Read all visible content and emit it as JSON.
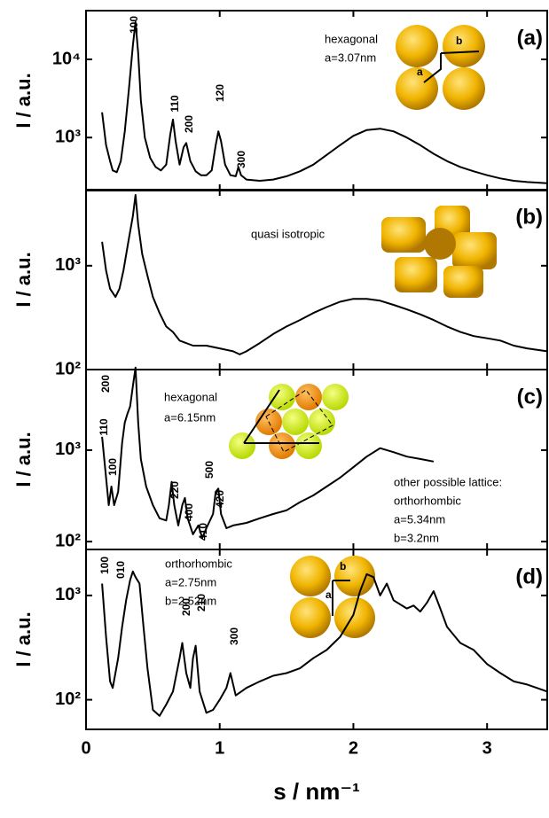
{
  "chart_data": [
    {
      "type": "line",
      "panel_label": "(a)",
      "ylabel": "I / a.u.",
      "log_y": true,
      "color": "#000000",
      "xlim": [
        0,
        3.45
      ],
      "ylim": [
        210,
        42000
      ],
      "yticks": [
        {
          "value": 1000,
          "label": "10³"
        },
        {
          "value": 10000,
          "label": "10⁴"
        }
      ],
      "annotations": [
        "100",
        "110",
        "200",
        "120",
        "300",
        "hexagonal",
        "a=3.07nm",
        "a",
        "b"
      ],
      "x": [
        0.12,
        0.15,
        0.18,
        0.2,
        0.23,
        0.26,
        0.29,
        0.32,
        0.35,
        0.37,
        0.39,
        0.41,
        0.44,
        0.48,
        0.52,
        0.56,
        0.6,
        0.63,
        0.65,
        0.67,
        0.7,
        0.73,
        0.75,
        0.78,
        0.82,
        0.86,
        0.9,
        0.94,
        0.97,
        0.99,
        1.01,
        1.04,
        1.08,
        1.12,
        1.14,
        1.16,
        1.2,
        1.3,
        1.4,
        1.5,
        1.6,
        1.7,
        1.8,
        1.9,
        2.0,
        2.1,
        2.2,
        2.3,
        2.4,
        2.5,
        2.6,
        2.7,
        2.8,
        2.9,
        3.0,
        3.1,
        3.2,
        3.3,
        3.45
      ],
      "values": [
        2100,
        800,
        500,
        380,
        360,
        500,
        1200,
        4000,
        15000,
        30000,
        12000,
        3000,
        1000,
        550,
        420,
        380,
        450,
        1100,
        1700,
        900,
        450,
        750,
        850,
        500,
        370,
        330,
        330,
        380,
        800,
        1200,
        900,
        450,
        330,
        320,
        420,
        330,
        290,
        280,
        290,
        320,
        370,
        450,
        600,
        800,
        1050,
        1250,
        1300,
        1200,
        1000,
        800,
        620,
        500,
        420,
        370,
        330,
        300,
        280,
        270,
        260
      ]
    },
    {
      "type": "line",
      "panel_label": "(b)",
      "ylabel": "I / a.u.",
      "log_y": true,
      "color": "#000000",
      "xlim": [
        0,
        3.45
      ],
      "ylim": [
        100,
        5400
      ],
      "yticks": [
        {
          "value": 100,
          "label": "10²"
        },
        {
          "value": 1000,
          "label": "10³"
        }
      ],
      "annotations": [
        "quasi isotropic"
      ],
      "x": [
        0.12,
        0.15,
        0.18,
        0.22,
        0.25,
        0.28,
        0.32,
        0.35,
        0.37,
        0.39,
        0.42,
        0.46,
        0.5,
        0.55,
        0.6,
        0.65,
        0.7,
        0.8,
        0.9,
        1.0,
        1.1,
        1.15,
        1.2,
        1.3,
        1.4,
        1.5,
        1.6,
        1.7,
        1.8,
        1.9,
        2.0,
        2.1,
        2.2,
        2.3,
        2.4,
        2.5,
        2.6,
        2.7,
        2.8,
        2.9,
        3.0,
        3.1,
        3.2,
        3.3,
        3.45
      ],
      "values": [
        1700,
        900,
        600,
        500,
        600,
        900,
        1800,
        3000,
        4800,
        2500,
        1300,
        800,
        500,
        350,
        260,
        230,
        190,
        170,
        170,
        160,
        150,
        140,
        150,
        180,
        220,
        260,
        300,
        350,
        400,
        450,
        480,
        480,
        460,
        420,
        380,
        340,
        300,
        260,
        230,
        210,
        200,
        190,
        170,
        160,
        150
      ]
    },
    {
      "type": "line",
      "panel_label": "(c)",
      "ylabel": "I / a.u.",
      "log_y": true,
      "color": "#000000",
      "xlim": [
        0,
        3.45
      ],
      "ylim": [
        82,
        7600
      ],
      "yticks": [
        {
          "value": 100,
          "label": "10²"
        },
        {
          "value": 1000,
          "label": "10³"
        }
      ],
      "annotations": [
        "200",
        "110",
        "100",
        "220",
        "400",
        "410",
        "500",
        "420",
        "hexagonal",
        "a=6.15nm",
        "other possible lattice:",
        "orthorhombic",
        "a=5.34nm",
        "b=3.2nm"
      ],
      "x": [
        0.12,
        0.15,
        0.17,
        0.19,
        0.21,
        0.24,
        0.27,
        0.29,
        0.31,
        0.33,
        0.35,
        0.37,
        0.39,
        0.41,
        0.45,
        0.5,
        0.55,
        0.6,
        0.62,
        0.64,
        0.66,
        0.69,
        0.72,
        0.74,
        0.76,
        0.8,
        0.84,
        0.87,
        0.9,
        0.95,
        0.97,
        0.99,
        1.01,
        1.05,
        1.1,
        1.2,
        1.3,
        1.4,
        1.5,
        1.6,
        1.7,
        1.8,
        1.9,
        2.0,
        2.1,
        2.2,
        2.3,
        2.4,
        2.5,
        2.6
      ],
      "values": [
        1400,
        500,
        250,
        400,
        250,
        350,
        1200,
        2000,
        2500,
        3000,
        5000,
        8000,
        2000,
        800,
        400,
        250,
        180,
        170,
        250,
        450,
        250,
        150,
        250,
        300,
        180,
        120,
        150,
        110,
        140,
        200,
        350,
        380,
        200,
        140,
        150,
        160,
        180,
        200,
        220,
        270,
        320,
        400,
        500,
        650,
        850,
        1050,
        950,
        850,
        800,
        750
      ]
    },
    {
      "type": "line",
      "panel_label": "(d)",
      "ylabel": "I / a.u.",
      "xlabel": "s / nm⁻¹",
      "log_y": true,
      "color": "#000000",
      "xlim": [
        0,
        3.45
      ],
      "ylim": [
        52,
        2760
      ],
      "xticks": [
        0,
        1,
        2,
        3
      ],
      "yticks": [
        {
          "value": 100,
          "label": "10²"
        },
        {
          "value": 1000,
          "label": "10³"
        }
      ],
      "annotations": [
        "100",
        "010",
        "200",
        "210",
        "300",
        "orthorhombic",
        "a=2.75nm",
        "b=2.52nm",
        "a",
        "b"
      ],
      "x": [
        0.12,
        0.15,
        0.18,
        0.2,
        0.24,
        0.27,
        0.3,
        0.33,
        0.35,
        0.37,
        0.4,
        0.43,
        0.46,
        0.5,
        0.55,
        0.6,
        0.65,
        0.7,
        0.72,
        0.75,
        0.78,
        0.8,
        0.82,
        0.85,
        0.9,
        0.95,
        1.0,
        1.05,
        1.08,
        1.12,
        1.2,
        1.3,
        1.4,
        1.5,
        1.6,
        1.7,
        1.8,
        1.9,
        2.0,
        2.05,
        2.1,
        2.15,
        2.2,
        2.25,
        2.3,
        2.4,
        2.45,
        2.5,
        2.55,
        2.6,
        2.65,
        2.7,
        2.8,
        2.9,
        3.0,
        3.1,
        3.2,
        3.3,
        3.45
      ],
      "values": [
        1300,
        400,
        150,
        130,
        250,
        500,
        900,
        1400,
        1700,
        1500,
        1300,
        500,
        200,
        80,
        70,
        90,
        120,
        250,
        350,
        180,
        130,
        250,
        330,
        120,
        75,
        80,
        100,
        130,
        180,
        110,
        130,
        150,
        170,
        180,
        200,
        250,
        300,
        400,
        650,
        1100,
        1600,
        1500,
        1000,
        1300,
        900,
        750,
        800,
        700,
        850,
        1100,
        750,
        500,
        350,
        300,
        220,
        180,
        150,
        140,
        120
      ]
    }
  ]
}
